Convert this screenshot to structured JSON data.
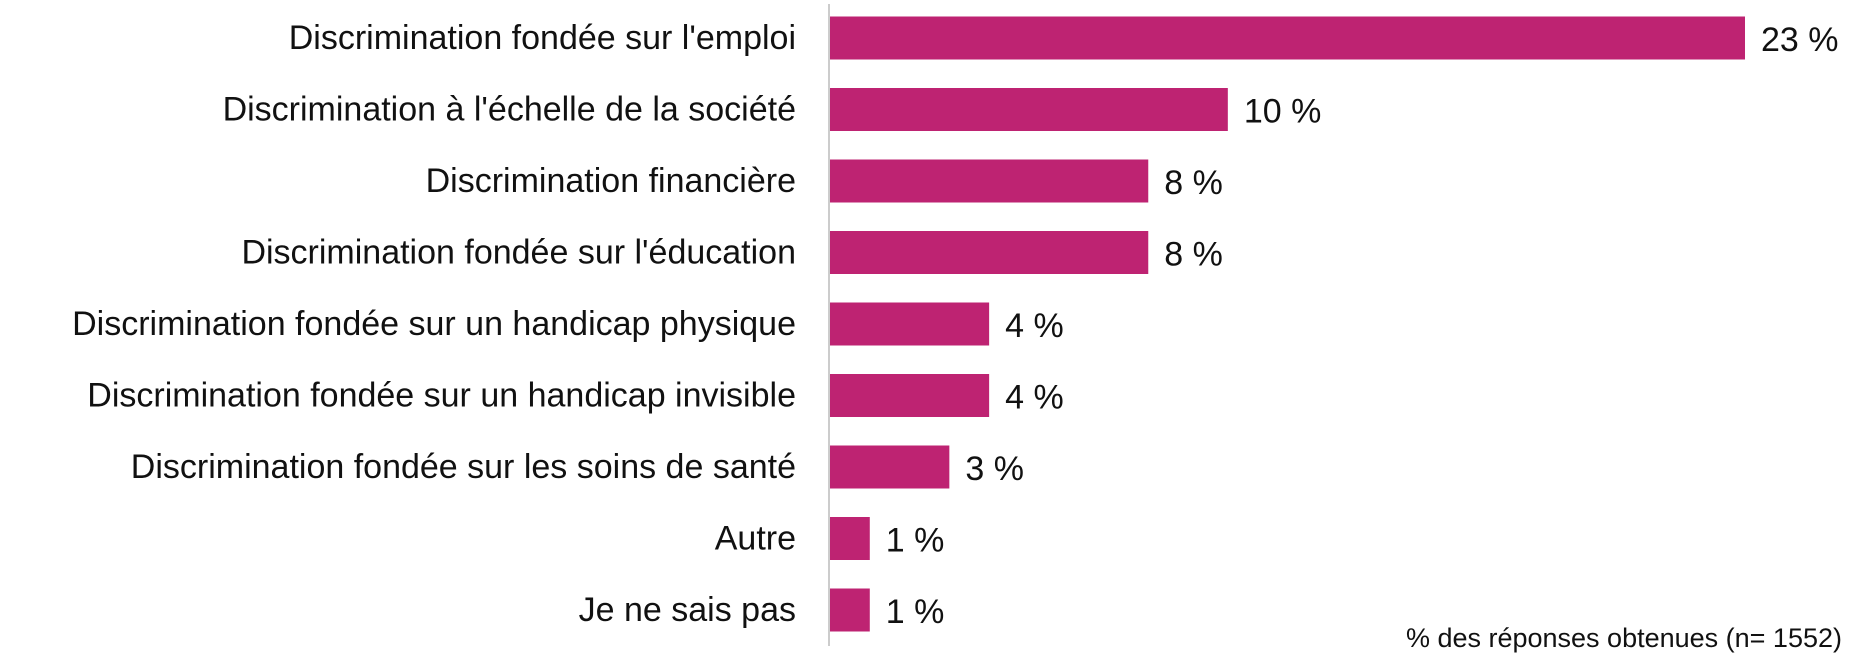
{
  "chart_data": {
    "type": "bar",
    "orientation": "horizontal",
    "categories": [
      "Discrimination fondée sur l'emploi",
      "Discrimination à l'échelle de la société",
      "Discrimination financière ",
      "Discrimination fondée sur l'éducation",
      "Discrimination fondée sur un handicap physique",
      "Discrimination fondée sur un handicap invisible",
      "Discrimination fondée sur les soins de santé",
      "Autre",
      "Je ne sais pas"
    ],
    "values": [
      23,
      10,
      8,
      8,
      4,
      4,
      3,
      1,
      1
    ],
    "value_labels": [
      "23 %",
      "10 %",
      "8 %",
      "8 %",
      "4 %",
      "4 %",
      "3 %",
      "1 %",
      "1 %"
    ],
    "xlim": [
      0,
      23
    ],
    "bar_color": "#BE2372",
    "axis_color": "#CCCCCC",
    "grid": false,
    "legend": "none",
    "note": "% des réponses obtenues (n= 1552)"
  }
}
